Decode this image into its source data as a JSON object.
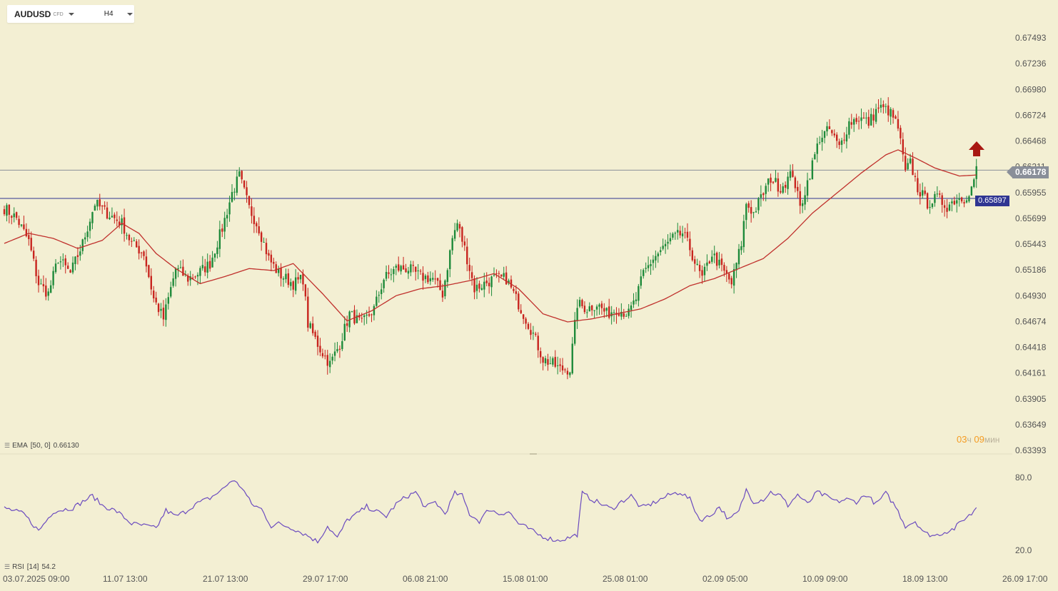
{
  "symbol": {
    "name": "AUDUSD",
    "type": "CFD",
    "timeframe": "H4"
  },
  "indicators": {
    "ema": {
      "name": "EMA",
      "params": "[50, 0]",
      "value": "0.66130"
    },
    "rsi": {
      "name": "RSI",
      "params": "[14]",
      "value": "54.2"
    }
  },
  "timer": {
    "hours": "03",
    "hours_unit": "ч",
    "minutes": "09",
    "minutes_unit": "мин"
  },
  "tags": {
    "current_price": "0.66178",
    "level": "0.65897"
  },
  "colors": {
    "background": "#f3efd3",
    "bull": "#1e8a3a",
    "bear": "#c8241e",
    "ema": "#c0302c",
    "rsi": "#6b4bbf",
    "current_line": "#8a8f99",
    "level_line": "#2f3592",
    "axis_text": "#555555"
  },
  "icons": {
    "direction_arrow": "up-arrow-icon",
    "indicator_menu": "menu-lines-icon"
  },
  "chart_data": {
    "type": "candlestick",
    "price_axis_ticks": [
      "0.67493",
      "0.67236",
      "0.66980",
      "0.66724",
      "0.66468",
      "0.66211",
      "0.65955",
      "0.65699",
      "0.65443",
      "0.65186",
      "0.64930",
      "0.64674",
      "0.64418",
      "0.64161",
      "0.63905",
      "0.63649",
      "0.63393"
    ],
    "rsi_axis_ticks": [
      "80.0",
      "20.0"
    ],
    "time_axis_labels": [
      "03.07.2025  09:00",
      "11.07  13:00",
      "21.07  13:00",
      "29.07  17:00",
      "06.08  21:00",
      "15.08  01:00",
      "25.08  01:00",
      "02.09  05:00",
      "10.09  09:00",
      "18.09  13:00",
      "26.09  17:00"
    ],
    "ylim": [
      0.63393,
      0.676
    ],
    "rsi_ylim": [
      0,
      100
    ],
    "horizontal_lines": [
      {
        "price": 0.66178,
        "label": "current"
      },
      {
        "price": 0.65897,
        "label": "level"
      }
    ],
    "close_anchors": [
      [
        0,
        0.658
      ],
      [
        5,
        0.657
      ],
      [
        10,
        0.6547
      ],
      [
        14,
        0.6505
      ],
      [
        18,
        0.6495
      ],
      [
        22,
        0.653
      ],
      [
        27,
        0.6515
      ],
      [
        32,
        0.6545
      ],
      [
        37,
        0.6585
      ],
      [
        42,
        0.6575
      ],
      [
        48,
        0.6565
      ],
      [
        52,
        0.6545
      ],
      [
        57,
        0.6535
      ],
      [
        61,
        0.649
      ],
      [
        65,
        0.647
      ],
      [
        70,
        0.652
      ],
      [
        75,
        0.651
      ],
      [
        79,
        0.6515
      ],
      [
        84,
        0.6525
      ],
      [
        89,
        0.656
      ],
      [
        93,
        0.6595
      ],
      [
        96,
        0.6612
      ],
      [
        100,
        0.658
      ],
      [
        104,
        0.656
      ],
      [
        108,
        0.653
      ],
      [
        112,
        0.6515
      ],
      [
        118,
        0.6505
      ],
      [
        122,
        0.651
      ],
      [
        124,
        0.6465
      ],
      [
        129,
        0.644
      ],
      [
        133,
        0.6425
      ],
      [
        137,
        0.6445
      ],
      [
        141,
        0.6475
      ],
      [
        146,
        0.6465
      ],
      [
        151,
        0.648
      ],
      [
        155,
        0.651
      ],
      [
        160,
        0.652
      ],
      [
        165,
        0.652
      ],
      [
        170,
        0.6512
      ],
      [
        175,
        0.651
      ],
      [
        179,
        0.6495
      ],
      [
        183,
        0.655
      ],
      [
        185,
        0.6565
      ],
      [
        188,
        0.654
      ],
      [
        192,
        0.65
      ],
      [
        196,
        0.6505
      ],
      [
        200,
        0.651
      ],
      [
        205,
        0.651
      ],
      [
        209,
        0.649
      ],
      [
        213,
        0.647
      ],
      [
        216,
        0.6455
      ],
      [
        220,
        0.643
      ],
      [
        224,
        0.6425
      ],
      [
        227,
        0.642
      ],
      [
        231,
        0.642
      ],
      [
        234,
        0.6485
      ],
      [
        238,
        0.648
      ],
      [
        242,
        0.6485
      ],
      [
        246,
        0.6475
      ],
      [
        250,
        0.648
      ],
      [
        255,
        0.6475
      ],
      [
        258,
        0.649
      ],
      [
        261,
        0.6515
      ],
      [
        265,
        0.653
      ],
      [
        269,
        0.654
      ],
      [
        273,
        0.655
      ],
      [
        277,
        0.6555
      ],
      [
        280,
        0.654
      ],
      [
        283,
        0.652
      ],
      [
        285,
        0.651
      ],
      [
        289,
        0.6535
      ],
      [
        293,
        0.652
      ],
      [
        297,
        0.6505
      ],
      [
        301,
        0.6545
      ],
      [
        303,
        0.6585
      ],
      [
        306,
        0.6575
      ],
      [
        309,
        0.659
      ],
      [
        313,
        0.661
      ],
      [
        317,
        0.66
      ],
      [
        322,
        0.6615
      ],
      [
        325,
        0.658
      ],
      [
        329,
        0.6615
      ],
      [
        333,
        0.665
      ],
      [
        337,
        0.6658
      ],
      [
        341,
        0.664
      ],
      [
        345,
        0.6665
      ],
      [
        349,
        0.667
      ],
      [
        353,
        0.6665
      ],
      [
        357,
        0.668
      ],
      [
        361,
        0.6677
      ],
      [
        363,
        0.667
      ],
      [
        365,
        0.666
      ],
      [
        368,
        0.6615
      ],
      [
        370,
        0.6625
      ],
      [
        373,
        0.66
      ],
      [
        377,
        0.6585
      ],
      [
        381,
        0.659
      ],
      [
        385,
        0.6582
      ],
      [
        389,
        0.659
      ],
      [
        392,
        0.659
      ],
      [
        395,
        0.66
      ],
      [
        397,
        0.6618
      ]
    ],
    "ema_anchors": [
      [
        0,
        0.6545
      ],
      [
        10,
        0.6555
      ],
      [
        20,
        0.655
      ],
      [
        30,
        0.654
      ],
      [
        40,
        0.6548
      ],
      [
        48,
        0.6565
      ],
      [
        55,
        0.6555
      ],
      [
        62,
        0.6535
      ],
      [
        70,
        0.652
      ],
      [
        80,
        0.6505
      ],
      [
        90,
        0.6512
      ],
      [
        100,
        0.652
      ],
      [
        110,
        0.6518
      ],
      [
        118,
        0.6525
      ],
      [
        130,
        0.6495
      ],
      [
        140,
        0.6468
      ],
      [
        150,
        0.6478
      ],
      [
        160,
        0.6493
      ],
      [
        170,
        0.65
      ],
      [
        180,
        0.6503
      ],
      [
        190,
        0.6508
      ],
      [
        200,
        0.6515
      ],
      [
        210,
        0.65
      ],
      [
        220,
        0.6475
      ],
      [
        230,
        0.6467
      ],
      [
        240,
        0.647
      ],
      [
        250,
        0.6475
      ],
      [
        260,
        0.648
      ],
      [
        270,
        0.649
      ],
      [
        280,
        0.6503
      ],
      [
        290,
        0.651
      ],
      [
        300,
        0.652
      ],
      [
        310,
        0.653
      ],
      [
        320,
        0.655
      ],
      [
        330,
        0.6575
      ],
      [
        340,
        0.6595
      ],
      [
        350,
        0.6615
      ],
      [
        360,
        0.6633
      ],
      [
        365,
        0.6638
      ],
      [
        372,
        0.663
      ],
      [
        380,
        0.662
      ],
      [
        390,
        0.6612
      ],
      [
        397,
        0.6613
      ]
    ],
    "rsi_anchors": [
      [
        0,
        55
      ],
      [
        8,
        50
      ],
      [
        14,
        36
      ],
      [
        20,
        52
      ],
      [
        28,
        55
      ],
      [
        32,
        60
      ],
      [
        36,
        65
      ],
      [
        40,
        57
      ],
      [
        46,
        52
      ],
      [
        52,
        42
      ],
      [
        58,
        40
      ],
      [
        62,
        38
      ],
      [
        66,
        53
      ],
      [
        70,
        48
      ],
      [
        74,
        52
      ],
      [
        78,
        58
      ],
      [
        84,
        63
      ],
      [
        89,
        70
      ],
      [
        93,
        78
      ],
      [
        97,
        72
      ],
      [
        101,
        58
      ],
      [
        105,
        54
      ],
      [
        109,
        40
      ],
      [
        112,
        42
      ],
      [
        118,
        38
      ],
      [
        124,
        32
      ],
      [
        128,
        27
      ],
      [
        132,
        40
      ],
      [
        136,
        30
      ],
      [
        140,
        45
      ],
      [
        144,
        50
      ],
      [
        148,
        56
      ],
      [
        152,
        52
      ],
      [
        156,
        48
      ],
      [
        160,
        58
      ],
      [
        164,
        64
      ],
      [
        168,
        68
      ],
      [
        172,
        55
      ],
      [
        176,
        60
      ],
      [
        180,
        50
      ],
      [
        184,
        67
      ],
      [
        187,
        65
      ],
      [
        190,
        50
      ],
      [
        194,
        44
      ],
      [
        198,
        54
      ],
      [
        202,
        50
      ],
      [
        206,
        52
      ],
      [
        210,
        42
      ],
      [
        214,
        38
      ],
      [
        218,
        33
      ],
      [
        222,
        30
      ],
      [
        226,
        28
      ],
      [
        230,
        30
      ],
      [
        234,
        33
      ],
      [
        236,
        67
      ],
      [
        240,
        62
      ],
      [
        244,
        58
      ],
      [
        248,
        54
      ],
      [
        252,
        60
      ],
      [
        256,
        65
      ],
      [
        260,
        55
      ],
      [
        264,
        58
      ],
      [
        268,
        62
      ],
      [
        272,
        66
      ],
      [
        276,
        68
      ],
      [
        280,
        62
      ],
      [
        284,
        45
      ],
      [
        288,
        48
      ],
      [
        292,
        56
      ],
      [
        296,
        45
      ],
      [
        300,
        52
      ],
      [
        303,
        70
      ],
      [
        306,
        60
      ],
      [
        310,
        62
      ],
      [
        313,
        68
      ],
      [
        317,
        65
      ],
      [
        320,
        57
      ],
      [
        324,
        66
      ],
      [
        328,
        58
      ],
      [
        332,
        68
      ],
      [
        336,
        64
      ],
      [
        340,
        60
      ],
      [
        344,
        62
      ],
      [
        348,
        60
      ],
      [
        352,
        66
      ],
      [
        356,
        58
      ],
      [
        360,
        67
      ],
      [
        364,
        56
      ],
      [
        368,
        40
      ],
      [
        372,
        44
      ],
      [
        376,
        34
      ],
      [
        380,
        32
      ],
      [
        384,
        35
      ],
      [
        388,
        38
      ],
      [
        392,
        46
      ],
      [
        395,
        50
      ],
      [
        397,
        56
      ]
    ]
  }
}
